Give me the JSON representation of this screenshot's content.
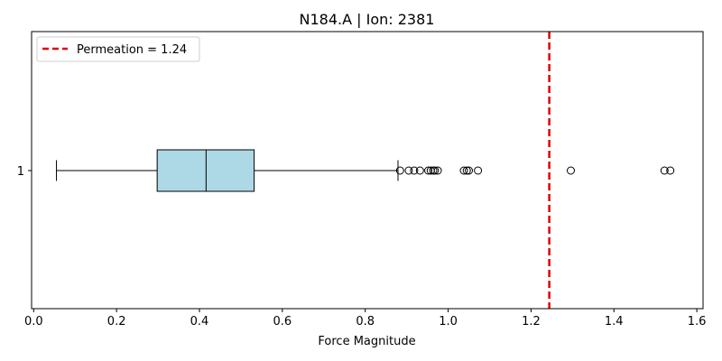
{
  "chart_data": {
    "type": "boxplot",
    "title": "N184.A | Ion: 2381",
    "xlabel": "Force Magnitude",
    "ylabel": "",
    "xlim": [
      -0.005,
      1.615
    ],
    "x_ticks": [
      0.0,
      0.2,
      0.4,
      0.6,
      0.8,
      1.0,
      1.2,
      1.4,
      1.6
    ],
    "x_tick_labels": [
      "0.0",
      "0.2",
      "0.4",
      "0.6",
      "0.8",
      "1.0",
      "1.2",
      "1.4",
      "1.6"
    ],
    "y_tick_labels": [
      "1"
    ],
    "grid": false,
    "legend_position": "upper-left",
    "box": {
      "category": "1",
      "whisker_low": 0.055,
      "q1": 0.298,
      "median": 0.416,
      "q3": 0.532,
      "whisker_high": 0.879,
      "outliers": [
        0.884,
        0.905,
        0.918,
        0.932,
        0.952,
        0.958,
        0.964,
        0.968,
        0.975,
        1.038,
        1.045,
        1.05,
        1.072,
        1.296,
        1.522,
        1.536
      ],
      "fill_color": "#add8e6",
      "edge_color": "#000000"
    },
    "reference_line": {
      "label": "Permeation = 1.24",
      "value": 1.244,
      "color": "#e00000",
      "style": "dashed"
    }
  }
}
